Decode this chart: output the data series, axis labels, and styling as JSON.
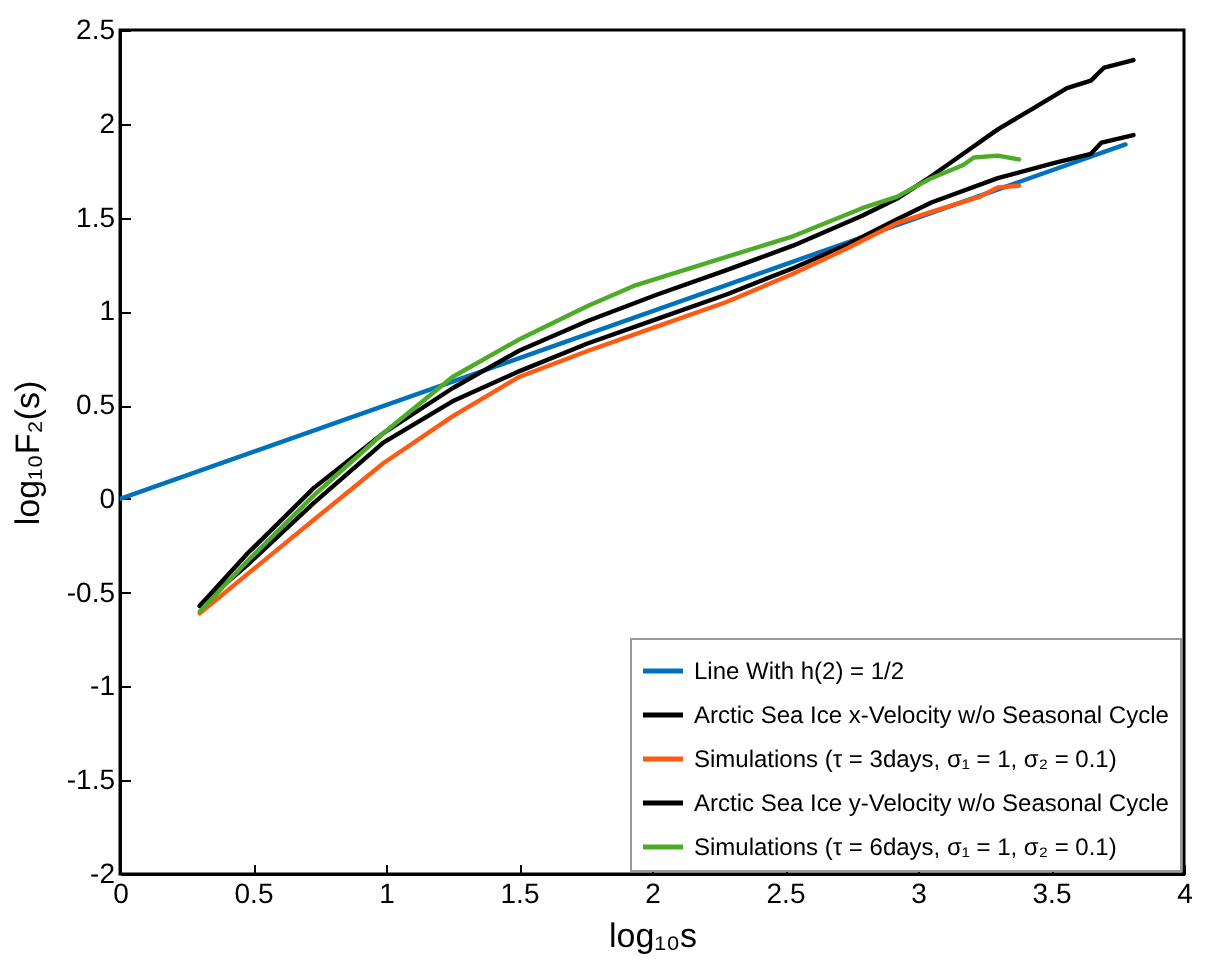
{
  "chart_data": {
    "type": "line",
    "xlabel": "log₁₀s",
    "ylabel": "log₁₀F₂(s)",
    "xlim": [
      0,
      4
    ],
    "xticks": [
      0,
      0.5,
      1,
      1.5,
      2,
      2.5,
      3,
      3.5,
      4
    ],
    "ylim": [
      -2,
      2.5
    ],
    "yticks": [
      -2,
      -1.5,
      -1,
      -0.5,
      0,
      0.5,
      1,
      1.5,
      2,
      2.5
    ],
    "grid": false,
    "legend": "bottom right",
    "line_style": "solid",
    "marker": "none",
    "series": [
      {
        "name": "Line With h(2) = 1/2",
        "color": "#0072bd",
        "x": [
          0,
          3.78
        ],
        "values": [
          0,
          1.89
        ]
      },
      {
        "name": "Arctic Sea Ice x-Velocity w/o Seasonal Cycle",
        "color": "#000000",
        "x": [
          0.3,
          0.48,
          0.73,
          0.99,
          1.25,
          1.5,
          1.76,
          2.02,
          2.28,
          2.53,
          2.74,
          2.92,
          3.05,
          3.3,
          3.51,
          3.65,
          3.69,
          3.81
        ],
        "values": [
          -0.57,
          -0.35,
          -0.02,
          0.3,
          0.52,
          0.68,
          0.83,
          0.96,
          1.09,
          1.23,
          1.36,
          1.49,
          1.58,
          1.71,
          1.79,
          1.84,
          1.9,
          1.94
        ]
      },
      {
        "name": "Simulations (τ = 3days, σ₁ = 1, σ₂ = 0.1)",
        "color": "#ff5a14",
        "x": [
          0.3,
          0.48,
          0.73,
          0.99,
          1.25,
          1.5,
          1.76,
          2.02,
          2.28,
          2.53,
          2.74,
          2.92,
          3.05,
          3.23,
          3.3,
          3.38
        ],
        "values": [
          -0.61,
          -0.4,
          -0.11,
          0.19,
          0.44,
          0.65,
          0.79,
          0.92,
          1.05,
          1.2,
          1.34,
          1.47,
          1.53,
          1.61,
          1.66,
          1.67
        ]
      },
      {
        "name": "Arctic Sea Ice y-Velocity w/o Seasonal Cycle",
        "color": "#000000",
        "x": [
          0.3,
          0.48,
          0.73,
          0.99,
          1.25,
          1.5,
          1.76,
          2.02,
          2.28,
          2.53,
          2.79,
          2.92,
          3.05,
          3.17,
          3.3,
          3.43,
          3.56,
          3.65,
          3.7,
          3.81
        ],
        "values": [
          -0.57,
          -0.29,
          0.06,
          0.35,
          0.59,
          0.79,
          0.95,
          1.09,
          1.22,
          1.35,
          1.51,
          1.6,
          1.72,
          1.84,
          1.97,
          2.08,
          2.19,
          2.23,
          2.3,
          2.34
        ]
      },
      {
        "name": "Simulations (τ = 6days, σ₁ = 1, σ₂ = 0.1)",
        "color": "#4dac26",
        "x": [
          0.3,
          0.48,
          0.73,
          0.99,
          1.25,
          1.5,
          1.76,
          1.94,
          2.28,
          2.53,
          2.79,
          2.92,
          3.05,
          3.17,
          3.21,
          3.3,
          3.38
        ],
        "values": [
          -0.6,
          -0.33,
          0.02,
          0.35,
          0.65,
          0.85,
          1.03,
          1.14,
          1.29,
          1.4,
          1.55,
          1.61,
          1.71,
          1.78,
          1.82,
          1.83,
          1.81
        ]
      }
    ]
  }
}
